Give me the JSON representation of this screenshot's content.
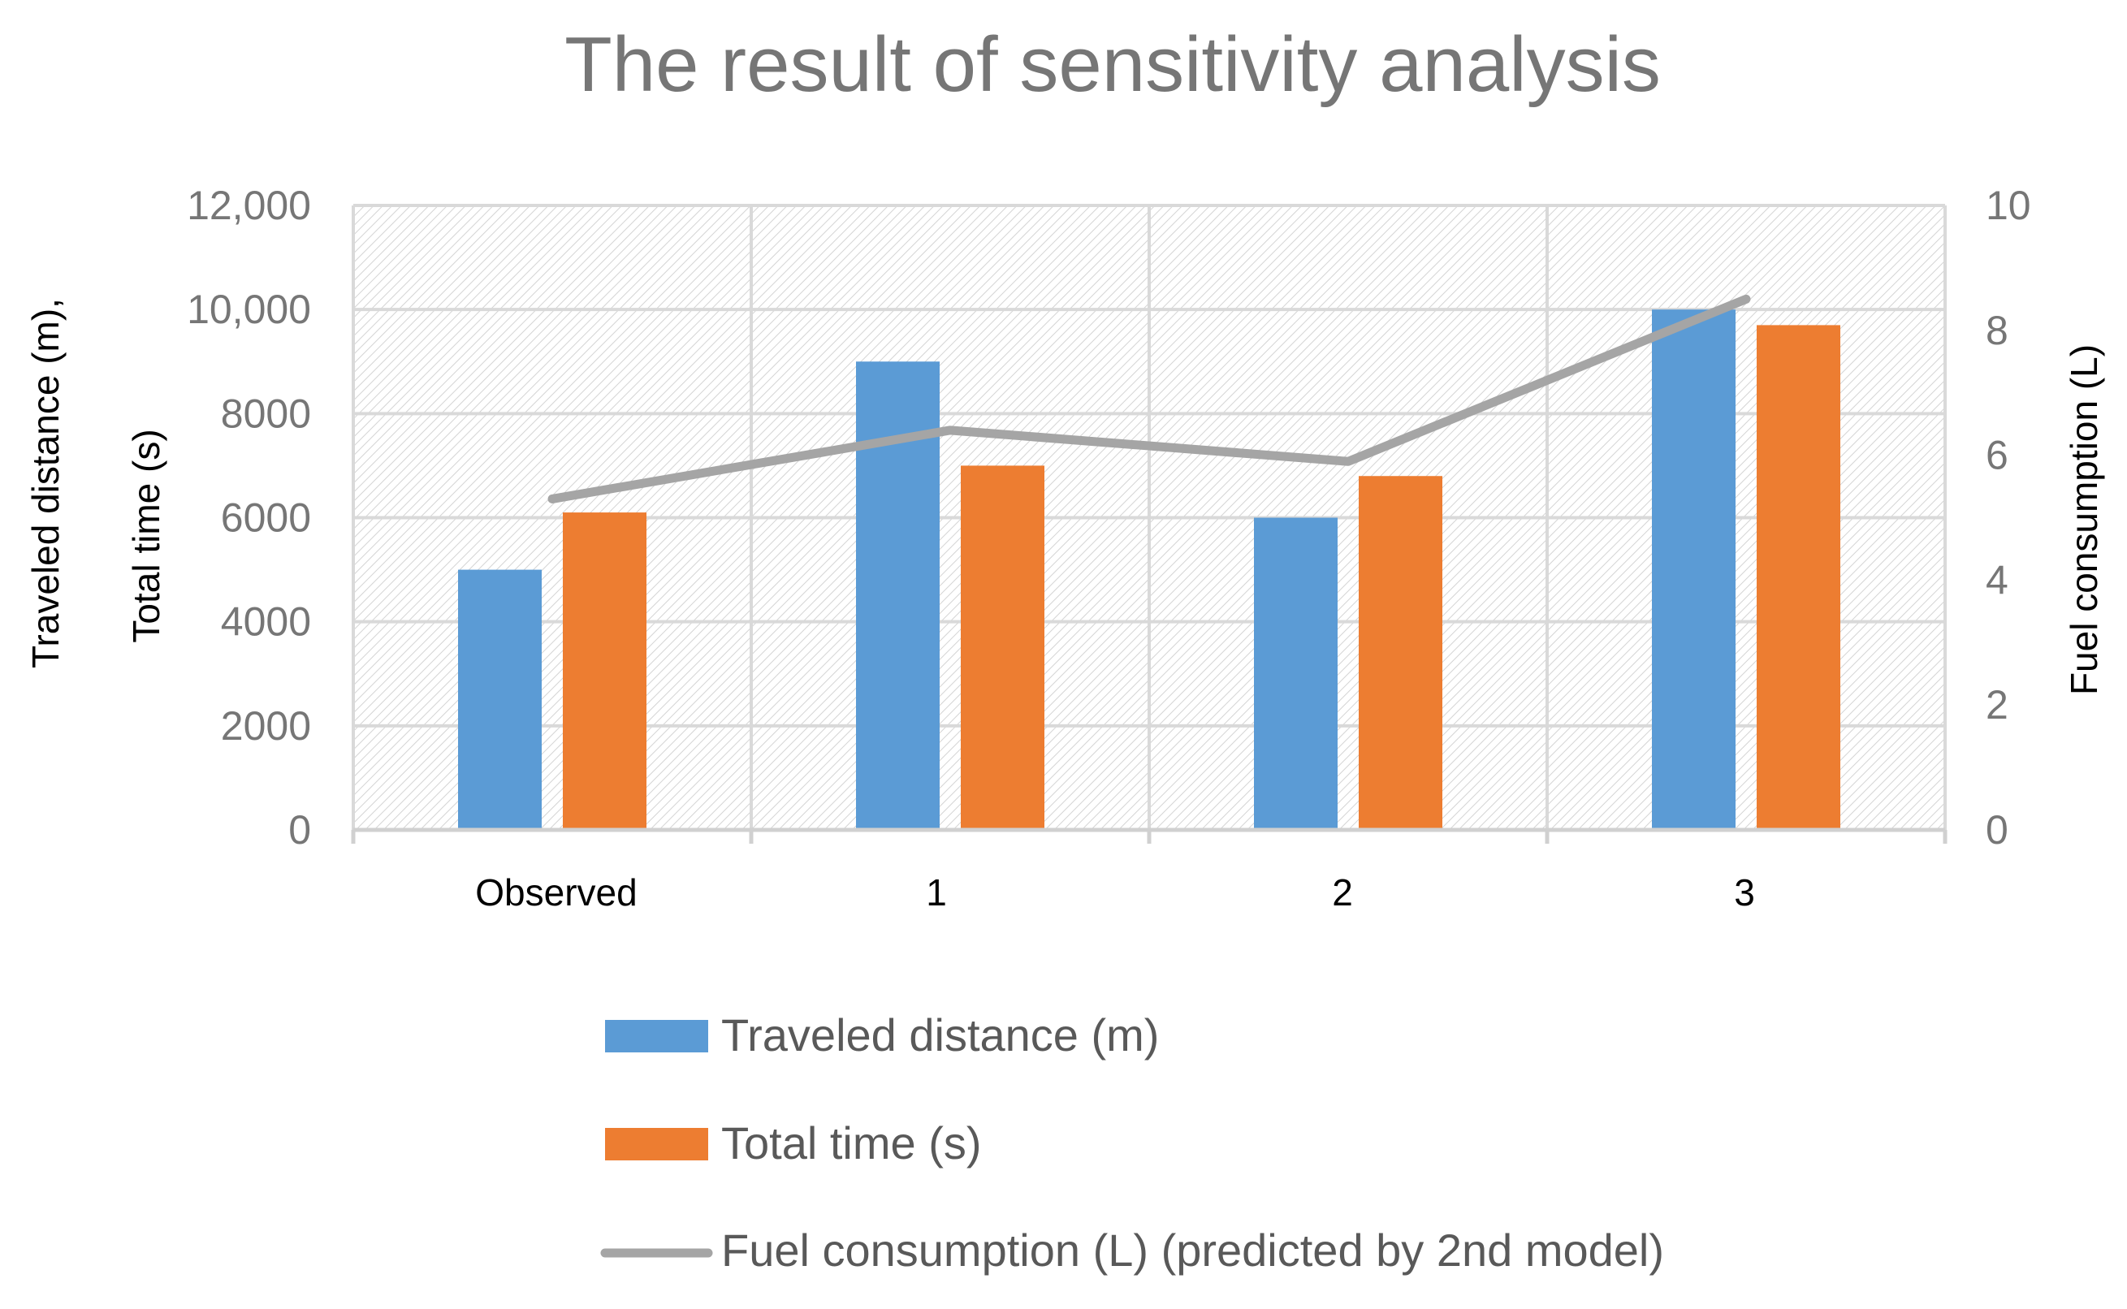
{
  "chart_data": {
    "type": "bar",
    "title": "The result of sensitivity analysis",
    "categories": [
      "Observed",
      "1",
      "2",
      "3"
    ],
    "y_left": {
      "label_line1": "Traveled distance (m),",
      "label_line2": "Total time (s)",
      "range": [
        0,
        12000
      ],
      "ticks": [
        0,
        2000,
        4000,
        6000,
        8000,
        10000,
        12000
      ],
      "tick_labels": [
        "0",
        "2000",
        "4000",
        "6000",
        "8000",
        "10,000",
        "12,000"
      ]
    },
    "y_right": {
      "label": "Fuel consumption (L)",
      "range": [
        0,
        10
      ],
      "ticks": [
        0,
        2,
        4,
        6,
        8,
        10
      ],
      "tick_labels": [
        "0",
        "2",
        "4",
        "6",
        "8",
        "10"
      ]
    },
    "series": [
      {
        "name": "Traveled distance (m)",
        "kind": "bar",
        "axis": "left",
        "color": "#5B9BD5",
        "values": [
          5000,
          9000,
          6000,
          10000
        ]
      },
      {
        "name": "Total time (s)",
        "kind": "bar",
        "axis": "left",
        "color": "#ED7D31",
        "values": [
          6100,
          7000,
          6800,
          9700
        ]
      },
      {
        "name": "Fuel consumption (L) (predicted by 2nd model)",
        "kind": "line",
        "axis": "right",
        "color": "#A5A5A5",
        "values": [
          5.3,
          6.4,
          5.9,
          8.5
        ]
      }
    ],
    "grid": true,
    "legend_position": "bottom"
  }
}
